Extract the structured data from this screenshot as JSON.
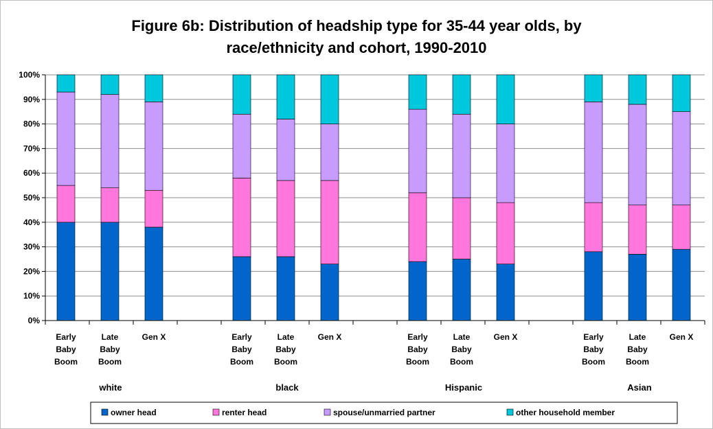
{
  "chart_data": {
    "type": "bar",
    "stacked": true,
    "title": "Figure 6b: Distribution of headship type for 35-44 year olds, by race/ethnicity and cohort, 1990-2010",
    "title_lines": [
      "Figure 6b: Distribution of headship type for 35-44 year olds, by",
      "race/ethnicity and cohort, 1990-2010"
    ],
    "ylim": [
      0,
      100
    ],
    "y_ticks": [
      "0%",
      "10%",
      "20%",
      "30%",
      "40%",
      "50%",
      "60%",
      "70%",
      "80%",
      "90%",
      "100%"
    ],
    "groups": [
      "white",
      "black",
      "Hispanic",
      "Asian"
    ],
    "cohorts": [
      [
        "Early",
        "Baby",
        "Boom"
      ],
      [
        "Late",
        "Baby",
        "Boom"
      ],
      [
        "Gen X"
      ]
    ],
    "categories": [
      "white Early Baby Boom",
      "white Late Baby Boom",
      "white Gen X",
      "black Early Baby Boom",
      "black Late Baby Boom",
      "black Gen X",
      "Hispanic Early Baby Boom",
      "Hispanic Late Baby Boom",
      "Hispanic Gen X",
      "Asian Early Baby Boom",
      "Asian Late Baby Boom",
      "Asian Gen X"
    ],
    "series": [
      {
        "name": "owner head",
        "color": "#0066CC",
        "values": [
          40,
          40,
          38,
          26,
          26,
          23,
          24,
          25,
          23,
          28,
          27,
          29
        ]
      },
      {
        "name": "renter head",
        "color": "#FF77DD",
        "values": [
          15,
          14,
          15,
          32,
          31,
          34,
          28,
          25,
          25,
          20,
          20,
          18
        ]
      },
      {
        "name": "spouse/unmarried partner",
        "color": "#C79BFF",
        "values": [
          38,
          38,
          36,
          26,
          25,
          23,
          34,
          34,
          32,
          41,
          41,
          38
        ]
      },
      {
        "name": "other household member",
        "color": "#00C8DC",
        "values": [
          7,
          8,
          11,
          16,
          18,
          20,
          14,
          16,
          20,
          11,
          12,
          15
        ]
      }
    ],
    "grid": true,
    "legend_position": "bottom"
  }
}
